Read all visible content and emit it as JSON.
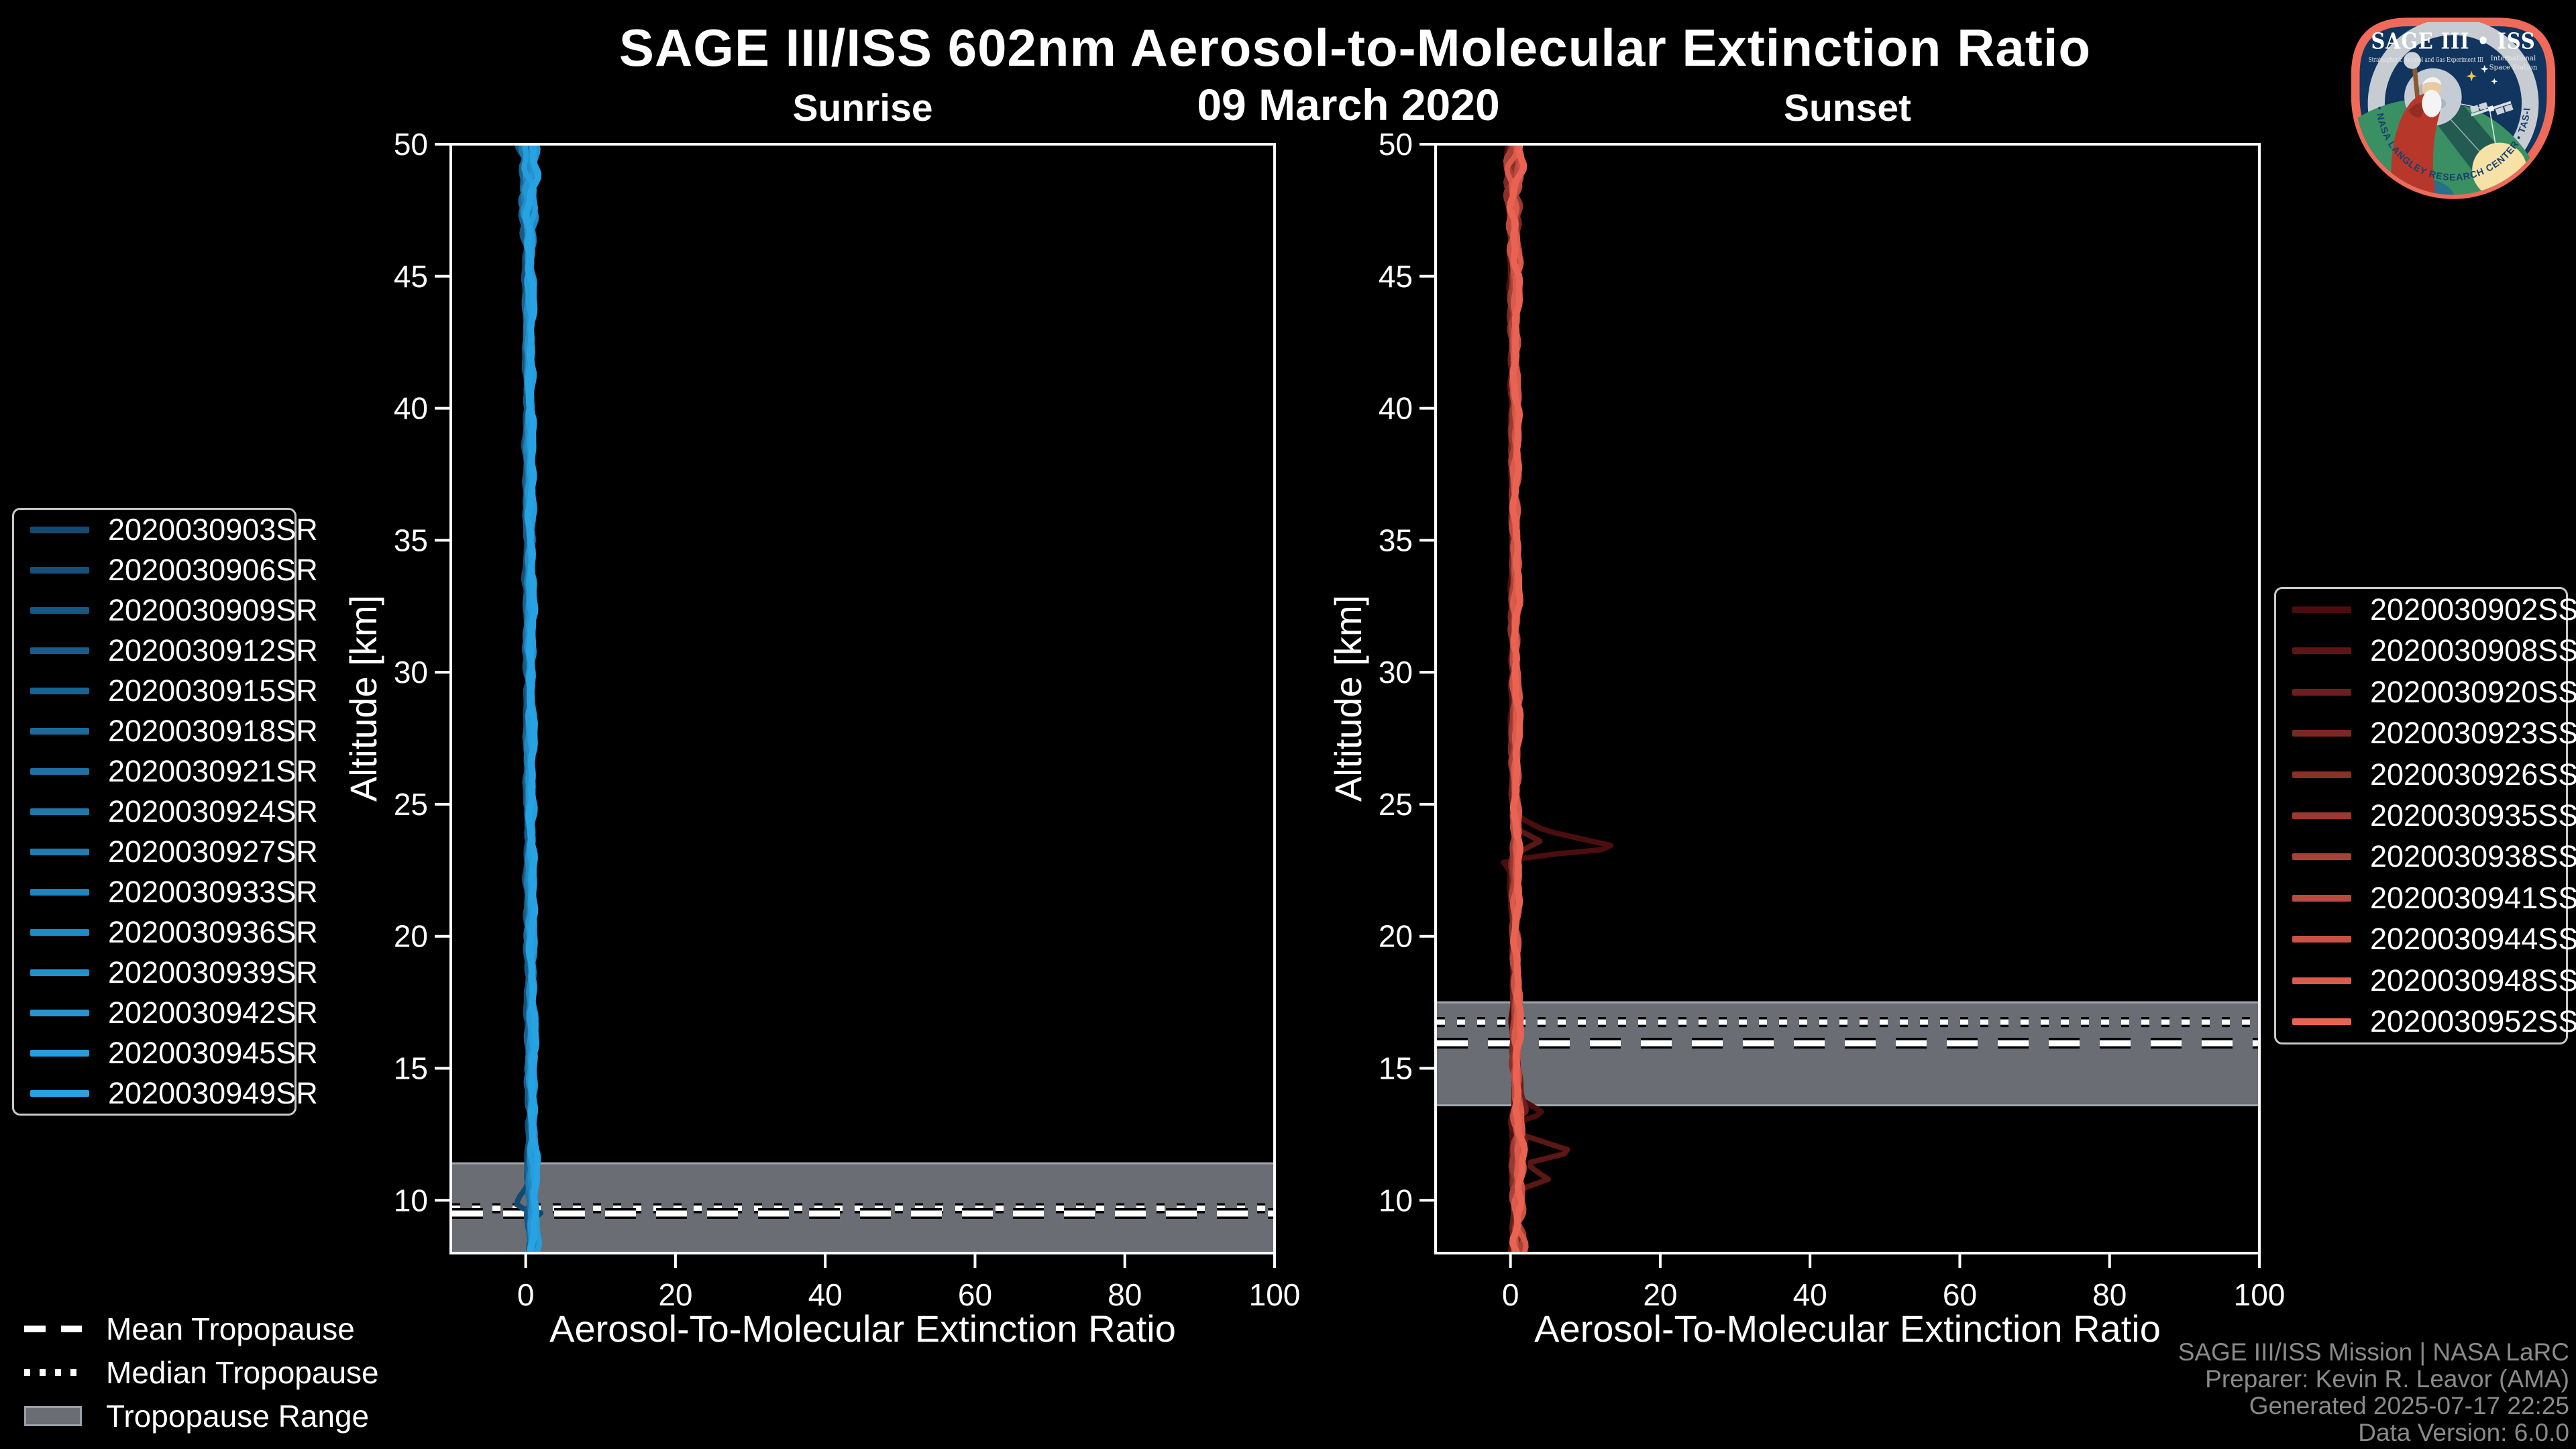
{
  "chart_data": {
    "type": "line",
    "title": "SAGE III/ISS 602nm Aerosol-to-Molecular Extinction Ratio",
    "subtitle": "09 March 2020",
    "xlabel": "Aerosol-To-Molecular Extinction Ratio",
    "ylabel": "Altitude [km]",
    "xlim": [
      -10,
      100
    ],
    "ylim": [
      8,
      50
    ],
    "xticks": [
      0,
      20,
      40,
      60,
      80,
      100
    ],
    "yticks": [
      10,
      15,
      20,
      25,
      30,
      35,
      40,
      45,
      50
    ],
    "grid": false,
    "background": "#000000",
    "tropopause_band_color": "#6a6e74",
    "panels": [
      {
        "id": "sunrise",
        "title": "Sunrise",
        "legend_position": "left",
        "wiggle": 0.5,
        "tropopause": {
          "mean_km": 9.5,
          "median_km": 9.7,
          "range_km": [
            8.0,
            11.4
          ]
        },
        "default_profile": [
          [
            50,
            0.35
          ],
          [
            40,
            0.45
          ],
          [
            30,
            0.5
          ],
          [
            20,
            0.6
          ],
          [
            15,
            0.7
          ],
          [
            12,
            0.8
          ],
          [
            10,
            0.9
          ],
          [
            8,
            1.0
          ]
        ],
        "series": [
          {
            "label": "2020030903SR",
            "color": "#144a70",
            "profile": [
              [
                50,
                0.3
              ],
              [
                40,
                0.45
              ],
              [
                30,
                0.5
              ],
              [
                20,
                0.6
              ],
              [
                15,
                0.7
              ],
              [
                12,
                0.75
              ],
              [
                10.6,
                0.6
              ],
              [
                10.1,
                -0.7
              ],
              [
                9.75,
                -0.9
              ],
              [
                9.5,
                2.6
              ],
              [
                9.2,
                0.4
              ],
              [
                8.6,
                0.8
              ],
              [
                8,
                0.9
              ]
            ]
          },
          {
            "label": "2020030906SR",
            "color": "#155078"
          },
          {
            "label": "2020030909SR",
            "color": "#175781"
          },
          {
            "label": "2020030912SR",
            "color": "#185d89"
          },
          {
            "label": "2020030915SR",
            "color": "#196391"
          },
          {
            "label": "2020030918SR",
            "color": "#1b6a99"
          },
          {
            "label": "2020030921SR",
            "color": "#1c70a2"
          },
          {
            "label": "2020030924SR",
            "color": "#1e77aa"
          },
          {
            "label": "2020030927SR",
            "color": "#1f7db2"
          },
          {
            "label": "2020030933SR",
            "color": "#2083bb"
          },
          {
            "label": "2020030936SR",
            "color": "#228ac3"
          },
          {
            "label": "2020030939SR",
            "color": "#2390cb"
          },
          {
            "label": "2020030942SR",
            "color": "#2496d3"
          },
          {
            "label": "2020030945SR",
            "color": "#269ddc"
          },
          {
            "label": "2020030949SR",
            "color": "#27a3e4"
          }
        ]
      },
      {
        "id": "sunset",
        "title": "Sunset",
        "legend_position": "right",
        "wiggle": 0.55,
        "tropopause": {
          "mean_km": 15.95,
          "median_km": 16.75,
          "range_km": [
            13.6,
            17.5
          ]
        },
        "default_profile": [
          [
            50,
            0.4
          ],
          [
            40,
            0.5
          ],
          [
            30,
            0.55
          ],
          [
            20,
            0.6
          ],
          [
            16,
            0.7
          ],
          [
            13,
            0.8
          ],
          [
            11,
            0.9
          ],
          [
            8,
            1.0
          ]
        ],
        "series": [
          {
            "label": "2020030902SS",
            "color": "#4a0e0e",
            "profile": [
              [
                50,
                0.4
              ],
              [
                40,
                0.5
              ],
              [
                30,
                0.55
              ],
              [
                25.2,
                0.6
              ],
              [
                24.5,
                1.2
              ],
              [
                24.0,
                5.0
              ],
              [
                23.35,
                15.2
              ],
              [
                23.05,
                4.0
              ],
              [
                22.8,
                -0.5
              ],
              [
                22.4,
                0.3
              ],
              [
                20,
                0.6
              ],
              [
                16,
                0.7
              ],
              [
                14.0,
                0.7
              ],
              [
                13.3,
                4.5
              ],
              [
                12.9,
                0.5
              ],
              [
                12.0,
                0.8
              ],
              [
                11,
                0.9
              ],
              [
                10,
                1.0
              ],
              [
                8.6,
                0.9
              ]
            ]
          },
          {
            "label": "2020030908SS",
            "color": "#5a1715",
            "profile": [
              [
                50,
                0.4
              ],
              [
                40,
                0.5
              ],
              [
                30,
                0.55
              ],
              [
                24.6,
                0.7
              ],
              [
                24.1,
                1.0
              ],
              [
                23.6,
                4.2
              ],
              [
                23.2,
                1.5
              ],
              [
                22.9,
                0.4
              ],
              [
                20,
                0.6
              ],
              [
                16,
                0.7
              ],
              [
                13.5,
                0.8
              ],
              [
                12.6,
                0.6
              ],
              [
                11.85,
                8.5
              ],
              [
                11.4,
                2.0
              ],
              [
                10.8,
                5.2
              ],
              [
                10.4,
                1.2
              ],
              [
                9.8,
                0.7
              ],
              [
                8.8,
                0.8
              ]
            ]
          },
          {
            "label": "2020030920SS",
            "color": "#6a1f1c",
            "profile": [
              [
                50,
                0.4
              ],
              [
                40,
                0.5
              ],
              [
                30,
                0.55
              ],
              [
                20,
                0.6
              ],
              [
                16,
                0.7
              ],
              [
                13.4,
                2.4
              ],
              [
                13.0,
                0.8
              ],
              [
                12.2,
                2.0
              ],
              [
                11.6,
                0.6
              ],
              [
                10,
                0.9
              ],
              [
                9,
                0.9
              ]
            ]
          },
          {
            "label": "2020030923SS",
            "color": "#7a2822"
          },
          {
            "label": "2020030926SS",
            "color": "#8a3029"
          },
          {
            "label": "2020030935SS",
            "color": "#9a3930"
          },
          {
            "label": "2020030938SS",
            "color": "#aa4137"
          },
          {
            "label": "2020030941SS",
            "color": "#ba4a3d"
          },
          {
            "label": "2020030944SS",
            "color": "#ca5244"
          },
          {
            "label": "2020030948SS",
            "color": "#da5b4b"
          },
          {
            "label": "2020030952SS",
            "color": "#ea6352"
          }
        ]
      }
    ]
  },
  "tropopause_legend": {
    "mean": "Mean Tropopause",
    "median": "Median Tropopause",
    "range": "Tropopause Range"
  },
  "attribution": {
    "lines": [
      "SAGE III/ISS Mission | NASA LaRC",
      "Preparer: Kevin R. Leavor (AMA)",
      "Generated 2025-07-17 22:25",
      "Data Version: 6.0.0"
    ]
  },
  "logo": {
    "title": "SAGE III • ISS",
    "sub_left": "Stratospheric Aerosol and Gas Experiment III",
    "sub_right_line1": "International",
    "sub_right_line2": "Space Station",
    "ring_text": "BALL • NASA LANGLEY RESEARCH CENTER • TAS-I • ESA"
  }
}
